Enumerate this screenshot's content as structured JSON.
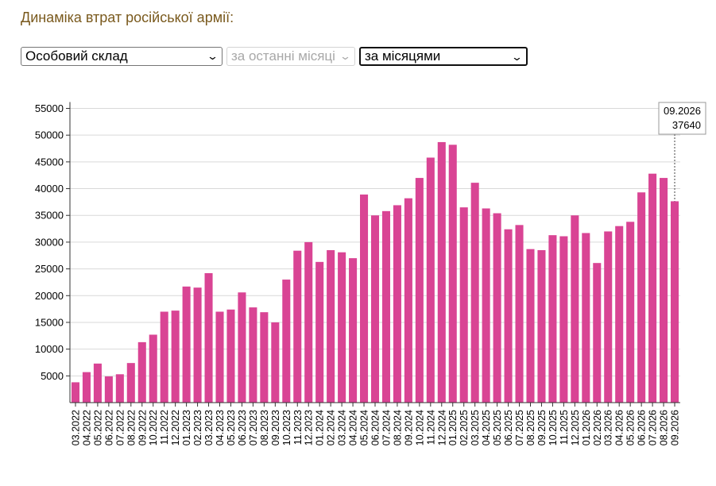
{
  "header": {
    "title": "Динаміка втрат російської армії:"
  },
  "controls": {
    "category_select": "Особовий склад",
    "period_select": "за останні місяці",
    "grouping_select": "за місяцями"
  },
  "tooltip": {
    "label": "09.2026",
    "value": "37640"
  },
  "colors": {
    "bar": "#d94494",
    "title": "#7a5a1e",
    "grid": "#d9d9d9"
  },
  "chart_data": {
    "type": "bar",
    "categories": [
      "03.2022",
      "04.2022",
      "05.2022",
      "06.2022",
      "07.2022",
      "08.2022",
      "09.2022",
      "10.2022",
      "11.2022",
      "12.2022",
      "01.2023",
      "02.2023",
      "03.2023",
      "04.2023",
      "05.2023",
      "06.2023",
      "07.2023",
      "08.2023",
      "09.2023",
      "10.2023",
      "11.2023",
      "12.2023",
      "01.2024",
      "02.2024",
      "03.2024",
      "04.2024",
      "05.2024",
      "06.2024",
      "07.2024",
      "08.2024",
      "09.2024",
      "10.2024",
      "11.2024",
      "12.2024",
      "01.2025",
      "02.2025",
      "03.2025",
      "04.2025",
      "05.2025",
      "06.2025",
      "07.2025",
      "08.2025",
      "09.2025",
      "10.2025",
      "11.2025",
      "12.2025",
      "01.2026",
      "02.2026",
      "03.2026",
      "04.2026",
      "05.2026",
      "06.2026",
      "07.2026",
      "08.2026",
      "09.2026"
    ],
    "values": [
      3800,
      5700,
      7300,
      4900,
      5300,
      7400,
      11300,
      12700,
      17000,
      17200,
      21700,
      21500,
      24200,
      17000,
      17400,
      20600,
      17800,
      16900,
      15000,
      23000,
      28400,
      30000,
      26300,
      28500,
      28100,
      27000,
      38900,
      35000,
      35800,
      36900,
      38200,
      42000,
      45800,
      48700,
      48200,
      36500,
      41100,
      36300,
      35400,
      32400,
      33200,
      28700,
      28500,
      31300,
      31100,
      35000,
      31700,
      26100,
      32000,
      33000,
      33800,
      39300,
      42800,
      42000,
      37640
    ],
    "ylim": [
      0,
      57000
    ],
    "yticks": [
      5000,
      10000,
      15000,
      20000,
      25000,
      30000,
      35000,
      40000,
      45000,
      50000,
      55000
    ],
    "xlabel": "",
    "ylabel": "",
    "grid": true
  }
}
